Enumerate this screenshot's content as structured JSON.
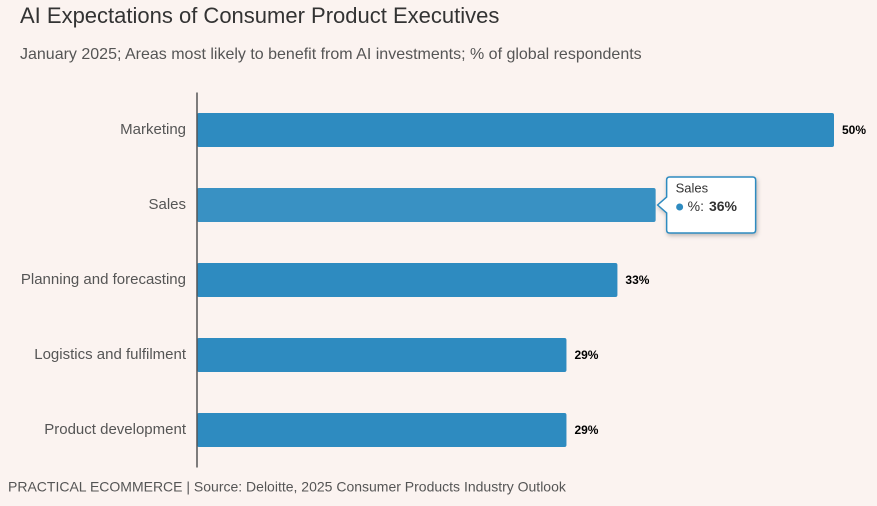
{
  "chart_data": {
    "type": "bar",
    "orientation": "horizontal",
    "title": "AI Expectations of Consumer Product Executives",
    "subtitle": "January 2025; Areas most likely to benefit from AI investments; % of global respondents",
    "source": "PRACTICAL ECOMMERCE | Source: Deloitte, 2025 Consumer Products Industry Outlook",
    "categories": [
      "Marketing",
      "Sales",
      "Planning and forecasting",
      "Logistics and fulfilment",
      "Product development"
    ],
    "series": [
      {
        "name": "%",
        "color": "#2e8bc0",
        "values": [
          50,
          36,
          33,
          29,
          29
        ],
        "value_labels": [
          "50%",
          "36%",
          "33%",
          "29%",
          "29%"
        ]
      }
    ],
    "xlim": [
      0,
      50
    ],
    "tooltip": {
      "index": 1,
      "separator": ":"
    }
  }
}
